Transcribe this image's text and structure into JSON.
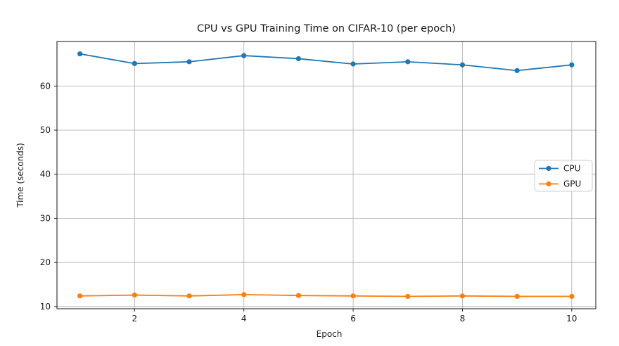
{
  "chart_data": {
    "type": "line",
    "title": "CPU vs GPU Training Time on CIFAR-10 (per epoch)",
    "xlabel": "Epoch",
    "ylabel": "Time (seconds)",
    "x": [
      1,
      2,
      3,
      4,
      5,
      6,
      7,
      8,
      9,
      10
    ],
    "series": [
      {
        "name": "CPU",
        "color": "#1f77b4",
        "marker": "circle",
        "values": [
          67.3,
          65.1,
          65.5,
          66.9,
          66.2,
          65.0,
          65.5,
          64.8,
          63.5,
          64.8
        ]
      },
      {
        "name": "GPU",
        "color": "#ff7f0e",
        "marker": "circle",
        "values": [
          12.4,
          12.6,
          12.4,
          12.7,
          12.5,
          12.4,
          12.3,
          12.4,
          12.3,
          12.3
        ]
      }
    ],
    "xlim": [
      0.58,
      10.44
    ],
    "ylim": [
      9.5,
      70.1
    ],
    "xticks": [
      2,
      4,
      6,
      8,
      10
    ],
    "yticks": [
      10,
      20,
      30,
      40,
      50,
      60
    ],
    "grid": true,
    "legend": {
      "position": "center right",
      "entries": [
        "CPU",
        "GPU"
      ]
    },
    "colors": {
      "grid": "#b6b6b6",
      "spine": "#262626",
      "legend_border": "#cccccc",
      "background": "#ffffff"
    }
  }
}
